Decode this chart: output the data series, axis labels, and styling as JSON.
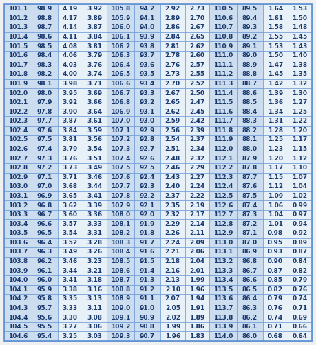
{
  "rows": [
    [
      "101.1",
      "98.9",
      "4.19",
      "3.92",
      "105.8",
      "94.2",
      "2.92",
      "2.73",
      "110.5",
      "89.5",
      "1.64",
      "1.53"
    ],
    [
      "101.2",
      "98.8",
      "4.17",
      "3.89",
      "105.9",
      "94.1",
      "2.89",
      "2.70",
      "110.6",
      "89.4",
      "1.61",
      "1.50"
    ],
    [
      "101.3",
      "98.7",
      "4.14",
      "3.87",
      "106.0",
      "94.0",
      "2.86",
      "2.67",
      "110.7",
      "89.3",
      "1.58",
      "1.48"
    ],
    [
      "101.4",
      "98.6",
      "4.11",
      "3.84",
      "106.1",
      "93.9",
      "2.84",
      "2.65",
      "110.8",
      "89.2",
      "1.55",
      "1.45"
    ],
    [
      "101.5",
      "98.5",
      "4.08",
      "3.81",
      "106.2",
      "93.8",
      "2.81",
      "2.62",
      "110.9",
      "89.1",
      "1.53",
      "1.43"
    ],
    [
      "101.6",
      "98.4",
      "4.06",
      "3.79",
      "106.3",
      "93.7",
      "2.78",
      "2.60",
      "111.0",
      "89.0",
      "1.50",
      "1.40"
    ],
    [
      "101.7",
      "98.3",
      "4.03",
      "3.76",
      "106.4",
      "93.6",
      "2.76",
      "2.57",
      "111.1",
      "88.9",
      "1.47",
      "1.38"
    ],
    [
      "101.8",
      "98.2",
      "4.00",
      "3.74",
      "106.5",
      "93.5",
      "2.73",
      "2.55",
      "111.2",
      "88.8",
      "1.45",
      "1.35"
    ],
    [
      "101.9",
      "98.1",
      "3.98",
      "3.71",
      "106.6",
      "93.4",
      "2.70",
      "2.52",
      "111.3",
      "88.7",
      "1.42",
      "1.32"
    ],
    [
      "102.0",
      "98.0",
      "3.95",
      "3.69",
      "106.7",
      "93.3",
      "2.67",
      "2.50",
      "111.4",
      "88.6",
      "1.39",
      "1.30"
    ],
    [
      "102.1",
      "97.9",
      "3.92",
      "3.66",
      "106.8",
      "93.2",
      "2.65",
      "2.47",
      "111.5",
      "88.5",
      "1.36",
      "1.27"
    ],
    [
      "102.2",
      "97.8",
      "3.90",
      "3.64",
      "106.9",
      "93.1",
      "2.62",
      "2.45",
      "111.6",
      "88.4",
      "1.34",
      "1.25"
    ],
    [
      "102.3",
      "97.7",
      "3.87",
      "3.61",
      "107.0",
      "93.0",
      "2.59",
      "2.42",
      "111.7",
      "88.3",
      "1.31",
      "1.22"
    ],
    [
      "102.4",
      "97.6",
      "3.84",
      "3.59",
      "107.1",
      "92.9",
      "2.56",
      "2.39",
      "111.8",
      "88.2",
      "1.28",
      "1.20"
    ],
    [
      "102.5",
      "97.5",
      "3.81",
      "3.56",
      "107.2",
      "92.8",
      "2.54",
      "2.37",
      "111.9",
      "88.1",
      "1.25",
      "1.17"
    ],
    [
      "102.6",
      "97.4",
      "3.79",
      "3.54",
      "107.3",
      "92.7",
      "2.51",
      "2.34",
      "112.0",
      "88.0",
      "1.23",
      "1.15"
    ],
    [
      "102.7",
      "97.3",
      "3.76",
      "3.51",
      "107.4",
      "92.6",
      "2.48",
      "2.32",
      "112.1",
      "87.9",
      "1.20",
      "1.12"
    ],
    [
      "102.8",
      "97.2",
      "3.73",
      "3.49",
      "107.5",
      "92.5",
      "2.46",
      "2.29",
      "112.2",
      "87.8",
      "1.17",
      "1.10"
    ],
    [
      "102.9",
      "97.1",
      "3.71",
      "3.46",
      "107.6",
      "92.4",
      "2.43",
      "2.27",
      "112.3",
      "87.7",
      "1.15",
      "1.07"
    ],
    [
      "103.0",
      "97.0",
      "3.68",
      "3.44",
      "107.7",
      "92.3",
      "2.40",
      "2.24",
      "112.4",
      "87.6",
      "1.12",
      "1.04"
    ],
    [
      "103.1",
      "96.9",
      "3.65",
      "3.41",
      "107.8",
      "92.2",
      "2.37",
      "2.22",
      "112.5",
      "87.5",
      "1.09",
      "1.02"
    ],
    [
      "103.2",
      "96.8",
      "3.62",
      "3.39",
      "107.9",
      "92.1",
      "2.35",
      "2.19",
      "112.6",
      "87.4",
      "1.06",
      "0.99"
    ],
    [
      "103.3",
      "96.7",
      "3.60",
      "3.36",
      "108.0",
      "92.0",
      "2.32",
      "2.17",
      "112.7",
      "87.3",
      "1.04",
      "0.97"
    ],
    [
      "103.4",
      "96.6",
      "3.57",
      "3.33",
      "108.1",
      "91.9",
      "2.29",
      "2.14",
      "112.8",
      "87.2",
      "1.01",
      "0.94"
    ],
    [
      "103.5",
      "96.5",
      "3.54",
      "3.31",
      "108.2",
      "91.8",
      "2.26",
      "2.11",
      "112.9",
      "87.1",
      "0.98",
      "0.92"
    ],
    [
      "103.6",
      "96.4",
      "3.52",
      "3.28",
      "108.3",
      "91.7",
      "2.24",
      "2.09",
      "113.0",
      "87.0",
      "0.95",
      "0.89"
    ],
    [
      "103.7",
      "96.3",
      "3.49",
      "3.26",
      "108.4",
      "91.6",
      "2.21",
      "2.06",
      "113.1",
      "86.9",
      "0.93",
      "0.87"
    ],
    [
      "103.8",
      "96.2",
      "3.46",
      "3.23",
      "108.5",
      "91.5",
      "2.18",
      "2.04",
      "113.2",
      "86.8",
      "0.90",
      "0.84"
    ],
    [
      "103.9",
      "96.1",
      "3.44",
      "3.21",
      "108.6",
      "91.4",
      "2.16",
      "2.01",
      "113.3",
      "86.7",
      "0.87",
      "0.82"
    ],
    [
      "104.0",
      "96.0",
      "3.41",
      "3.18",
      "108.7",
      "91.3",
      "2.13",
      "1.99",
      "113.4",
      "86.6",
      "0.85",
      "0.79"
    ],
    [
      "104.1",
      "95.9",
      "3.38",
      "3.16",
      "108.8",
      "91.2",
      "2.10",
      "1.96",
      "113.5",
      "86.5",
      "0.82",
      "0.76"
    ],
    [
      "104.2",
      "95.8",
      "3.35",
      "3.13",
      "108.9",
      "91.1",
      "2.07",
      "1.94",
      "113.6",
      "86.4",
      "0.79",
      "0.74"
    ],
    [
      "104.3",
      "95.7",
      "3.33",
      "3.11",
      "109.0",
      "91.0",
      "2.05",
      "1.91",
      "113.7",
      "86.3",
      "0.76",
      "0.71"
    ],
    [
      "104.4",
      "95.6",
      "3.30",
      "3.08",
      "109.1",
      "90.9",
      "2.02",
      "1.89",
      "113.8",
      "86.2",
      "0.74",
      "0.69"
    ],
    [
      "104.5",
      "95.5",
      "3.27",
      "3.06",
      "109.2",
      "90.8",
      "1.99",
      "1.86",
      "113.9",
      "86.1",
      "0.71",
      "0.66"
    ],
    [
      "104.6",
      "95.4",
      "3.25",
      "3.03",
      "109.3",
      "90.7",
      "1.96",
      "1.83",
      "114.0",
      "86.0",
      "0.68",
      "0.64"
    ]
  ],
  "cell_bg_light": "#ccddf0",
  "cell_bg_white": "#e8f0f8",
  "border_color": "#5b8fd4",
  "text_color": "#1a3a6e",
  "font_size": 6.5,
  "fig_width": 4.59,
  "fig_height": 5.01,
  "dpi": 100
}
